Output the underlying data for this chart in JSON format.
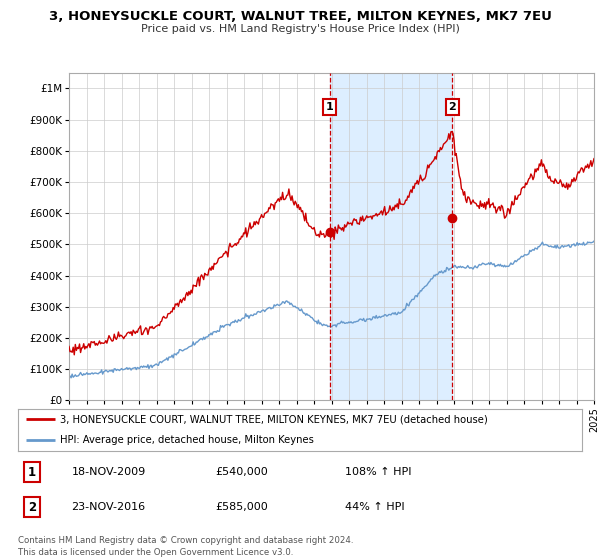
{
  "title": "3, HONEYSUCKLE COURT, WALNUT TREE, MILTON KEYNES, MK7 7EU",
  "subtitle": "Price paid vs. HM Land Registry's House Price Index (HPI)",
  "legend_label_red": "3, HONEYSUCKLE COURT, WALNUT TREE, MILTON KEYNES, MK7 7EU (detached house)",
  "legend_label_blue": "HPI: Average price, detached house, Milton Keynes",
  "sale1_date": "18-NOV-2009",
  "sale1_price": 540000,
  "sale1_hpi": "108%",
  "sale2_date": "23-NOV-2016",
  "sale2_price": 585000,
  "sale2_hpi": "44%",
  "footer1": "Contains HM Land Registry data © Crown copyright and database right 2024.",
  "footer2": "This data is licensed under the Open Government Licence v3.0.",
  "red_color": "#cc0000",
  "blue_color": "#6699cc",
  "shade_color": "#ddeeff",
  "grid_color": "#cccccc",
  "bg_color": "#ffffff",
  "sale1_x": 2009.9,
  "sale2_x": 2016.9
}
